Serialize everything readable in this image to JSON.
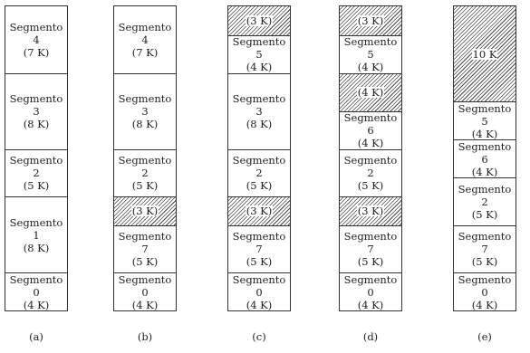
{
  "columns": [
    {
      "caption": "(a)",
      "blocks": [
        {
          "name": "Segmento 4",
          "size": "(7 K)",
          "hole": false
        },
        {
          "name": "Segmento 3",
          "size": "(8 K)",
          "hole": false
        },
        {
          "name": "Segmento 2",
          "size": "(5 K)",
          "hole": false
        },
        {
          "name": "Segmento 1",
          "size": "(8 K)",
          "hole": false
        },
        {
          "name": "Segmento 0",
          "size": "(4 K)",
          "hole": false
        }
      ]
    },
    {
      "caption": "(b)",
      "blocks": [
        {
          "name": "Segmento 4",
          "size": "(7 K)",
          "hole": false
        },
        {
          "name": "Segmento 3",
          "size": "(8 K)",
          "hole": false
        },
        {
          "name": "Segmento 2",
          "size": "(5 K)",
          "hole": false
        },
        {
          "name": "",
          "size": "(3 K)",
          "hole": true
        },
        {
          "name": "Segmento 7",
          "size": "(5 K)",
          "hole": false
        },
        {
          "name": "Segmento 0",
          "size": "(4 K)",
          "hole": false
        }
      ]
    },
    {
      "caption": "(c)",
      "blocks": [
        {
          "name": "",
          "size": "(3 K)",
          "hole": true
        },
        {
          "name": "Segmento 5",
          "size": "(4 K)",
          "hole": false
        },
        {
          "name": "Segmento 3",
          "size": "(8 K)",
          "hole": false
        },
        {
          "name": "Segmento 2",
          "size": "(5 K)",
          "hole": false
        },
        {
          "name": "",
          "size": "(3 K)",
          "hole": true
        },
        {
          "name": "Segmento 7",
          "size": "(5 K)",
          "hole": false
        },
        {
          "name": "Segmento 0",
          "size": "(4 K)",
          "hole": false
        }
      ]
    },
    {
      "caption": "(d)",
      "blocks": [
        {
          "name": "",
          "size": "(3 K)",
          "hole": true
        },
        {
          "name": "Segmento 5",
          "size": "(4 K)",
          "hole": false
        },
        {
          "name": "",
          "size": "(4 K)",
          "hole": true
        },
        {
          "name": "Segmento 6",
          "size": "(4 K)",
          "hole": false
        },
        {
          "name": "Segmento 2",
          "size": "(5 K)",
          "hole": false
        },
        {
          "name": "",
          "size": "(3 K)",
          "hole": true
        },
        {
          "name": "Segmento 7",
          "size": "(5 K)",
          "hole": false
        },
        {
          "name": "Segmento 0",
          "size": "(4 K)",
          "hole": false
        }
      ]
    },
    {
      "caption": "(e)",
      "blocks": [
        {
          "name": "",
          "size": "10 K",
          "hole": true
        },
        {
          "name": "Segmento 5",
          "size": "(4 K)",
          "hole": false
        },
        {
          "name": "Segmento 6",
          "size": "(4 K)",
          "hole": false
        },
        {
          "name": "Segmento 2",
          "size": "(5 K)",
          "hole": false
        },
        {
          "name": "Segmento 7",
          "size": "(5 K)",
          "hole": false
        },
        {
          "name": "Segmento 0",
          "size": "(4 K)",
          "hole": false
        }
      ]
    }
  ]
}
